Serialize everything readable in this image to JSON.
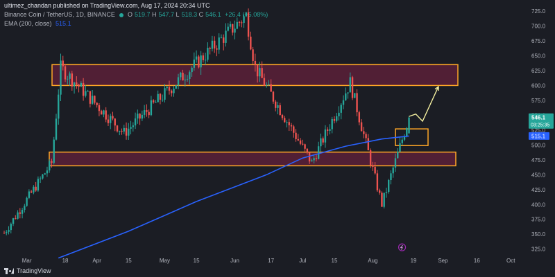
{
  "header": {
    "publisher": "ultimez_chandan published on TradingView.com, Aug 17, 2024 20:34 UTC",
    "symbol": "Binance Coin / TetherUS, 1D, BINANCE",
    "ohlc": {
      "o_label": "O",
      "o": "519.7",
      "h_label": "H",
      "h": "547.7",
      "l_label": "L",
      "l": "518.3",
      "c_label": "C",
      "c": "546.1",
      "change": "+26.4 (+5.08%)"
    },
    "ema_label": "EMA (200, close)",
    "ema_value": "515.1"
  },
  "footer": {
    "logo_text": "TradingView"
  },
  "colors": {
    "background": "#1b1d24",
    "up": "#26a69a",
    "down": "#ef5350",
    "ema": "#2962ff",
    "zone_border": "#ffa726",
    "zone_fill": "#5a2038",
    "arrow": "#f5f0a0"
  },
  "chart_data": {
    "type": "candlestick",
    "y_ticks": [
      "725.0",
      "700.0",
      "675.0",
      "650.0",
      "625.0",
      "600.0",
      "575.0",
      "550.0",
      "525.0",
      "500.0",
      "475.0",
      "450.0",
      "425.0",
      "400.0",
      "375.0",
      "350.0",
      "325.0"
    ],
    "ylim": [
      313,
      732
    ],
    "x_ticks": [
      "Mar",
      "18",
      "Apr",
      "15",
      "May",
      "15",
      "Jun",
      "17",
      "Jul",
      "15",
      "Aug",
      "19",
      "Sep",
      "16",
      "Oct"
    ],
    "price_labels": {
      "last_price": "546.1",
      "countdown": "03:25:35",
      "ema": "515.1"
    },
    "zones": [
      {
        "name": "resistance-zone",
        "top": 635,
        "bottom": 600
      },
      {
        "name": "support-zone",
        "top": 488,
        "bottom": 465
      },
      {
        "name": "consolidation-box",
        "top": 527,
        "bottom": 499
      }
    ],
    "key_points": [
      {
        "date": "Feb 20",
        "price": 352
      },
      {
        "date": "Mar 12",
        "price": 470
      },
      {
        "date": "Mar 16",
        "price": 630
      },
      {
        "date": "Apr 13",
        "price": 520
      },
      {
        "date": "Jun 6",
        "price": 718
      },
      {
        "date": "Jun 10",
        "price": 630
      },
      {
        "date": "Jul 5",
        "price": 470
      },
      {
        "date": "Jul 22",
        "price": 605
      },
      {
        "date": "Aug 5",
        "price": 400
      },
      {
        "date": "Aug 17",
        "price": 546
      }
    ],
    "ema_points": [
      {
        "date": "Mar 15",
        "value": 310
      },
      {
        "date": "Apr 15",
        "value": 355
      },
      {
        "date": "May 15",
        "value": 405
      },
      {
        "date": "Jun 15",
        "value": 450
      },
      {
        "date": "Jul 1",
        "value": 478
      },
      {
        "date": "Jul 20",
        "value": 498
      },
      {
        "date": "Aug 5",
        "value": 510
      },
      {
        "date": "Aug 17",
        "value": 515
      }
    ],
    "projection": [
      {
        "date": "Aug 17",
        "price": 548
      },
      {
        "date": "Aug 20",
        "price": 552
      },
      {
        "date": "Aug 23",
        "price": 540
      },
      {
        "date": "Aug 30",
        "price": 598
      }
    ]
  }
}
